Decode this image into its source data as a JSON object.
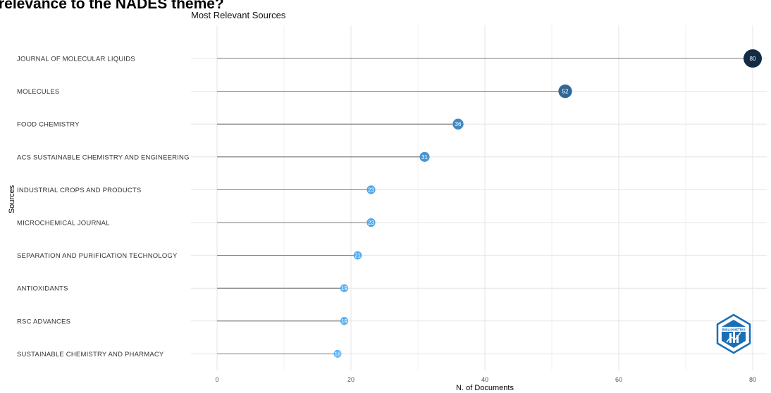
{
  "page": {
    "heading": "relevance to the NADES theme?"
  },
  "chart_data": {
    "type": "lollipop",
    "title": "Most Relevant Sources",
    "xlabel": "N. of Documents",
    "ylabel": "Sources",
    "xlim": [
      0,
      80
    ],
    "xticks": [
      0,
      20,
      40,
      60,
      80
    ],
    "grid": true,
    "categories": [
      "JOURNAL OF MOLECULAR LIQUIDS",
      "MOLECULES",
      "FOOD CHEMISTRY",
      "ACS SUSTAINABLE CHEMISTRY AND ENGINEERING",
      "INDUSTRIAL CROPS AND PRODUCTS",
      "MICROCHEMICAL JOURNAL",
      "SEPARATION AND PURIFICATION TECHNOLOGY",
      "ANTIOXIDANTS",
      "RSC ADVANCES",
      "SUSTAINABLE CHEMISTRY AND PHARMACY"
    ],
    "values": [
      80,
      52,
      36,
      31,
      23,
      23,
      21,
      19,
      19,
      18
    ],
    "colors": {
      "low": "#56b1f7",
      "high": "#132b43",
      "stem": "#555555"
    }
  },
  "logo": {
    "text": "BIBLIOMETRIX",
    "color": "#1b6fb5"
  }
}
